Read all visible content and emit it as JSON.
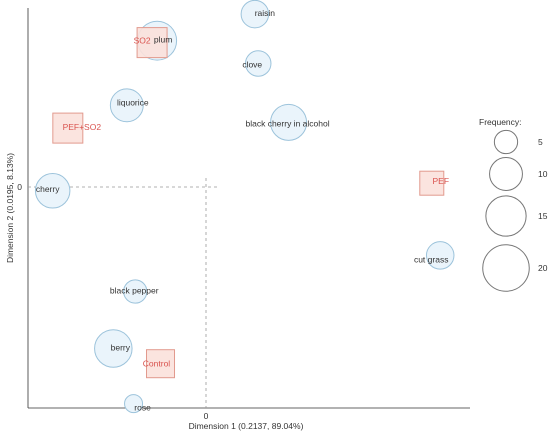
{
  "chart_data": {
    "type": "scatter",
    "subtype": "correspondence-analysis-biplot",
    "xlabel": "Dimension 1  (0.2137,  89.04%)",
    "ylabel": "Dimension 2  (0.0195,  8.13%)",
    "xlim": [
      -1.0,
      1.3
    ],
    "ylim": [
      -1.3,
      1.05
    ],
    "x_ticks": [
      {
        "value": 0,
        "label": "0"
      }
    ],
    "y_ticks": [
      {
        "value": 0,
        "label": "0"
      }
    ],
    "grid": false,
    "reference_lines": "dashed lines through origin",
    "attributes": [
      {
        "label": "raisin",
        "x": 0.29,
        "y": 0.91,
        "frequency": 7
      },
      {
        "label": "plum",
        "x": -0.29,
        "y": 0.77,
        "frequency": 14
      },
      {
        "label": "clove",
        "x": 0.31,
        "y": 0.65,
        "frequency": 6
      },
      {
        "label": "liquorice",
        "x": -0.47,
        "y": 0.43,
        "frequency": 10
      },
      {
        "label": "black cherry in alcohol",
        "x": 0.49,
        "y": 0.34,
        "frequency": 12
      },
      {
        "label": "cherry",
        "x": -0.91,
        "y": -0.02,
        "frequency": 11
      },
      {
        "label": "cut grass",
        "x": 1.39,
        "y": -0.36,
        "frequency": 7
      },
      {
        "label": "black pepper",
        "x": -0.42,
        "y": -0.55,
        "frequency": 5
      },
      {
        "label": "berry",
        "x": -0.55,
        "y": -0.85,
        "frequency": 13
      },
      {
        "label": "rose",
        "x": -0.43,
        "y": -1.14,
        "frequency": 3
      }
    ],
    "treatments": [
      {
        "label": "SO2",
        "x": -0.32,
        "y": 0.76
      },
      {
        "label": "PEF+SO2",
        "x": -0.82,
        "y": 0.31
      },
      {
        "label": "PEF",
        "x": 1.34,
        "y": 0.02
      },
      {
        "label": "Control",
        "x": -0.27,
        "y": -0.93
      }
    ],
    "legend": {
      "title": "Frequency:",
      "position": "right",
      "entries": [
        {
          "label": "5",
          "value": 5
        },
        {
          "label": "10",
          "value": 10
        },
        {
          "label": "15",
          "value": 15
        },
        {
          "label": "20",
          "value": 20
        }
      ]
    },
    "colors": {
      "attribute_fill": "#eaf4fb",
      "attribute_stroke": "#9cc3db",
      "treatment_fill": "#fbe1dc",
      "treatment_stroke": "#e29a8e",
      "treatment_text": "#d9534f",
      "legend_stroke": "#777777"
    }
  }
}
